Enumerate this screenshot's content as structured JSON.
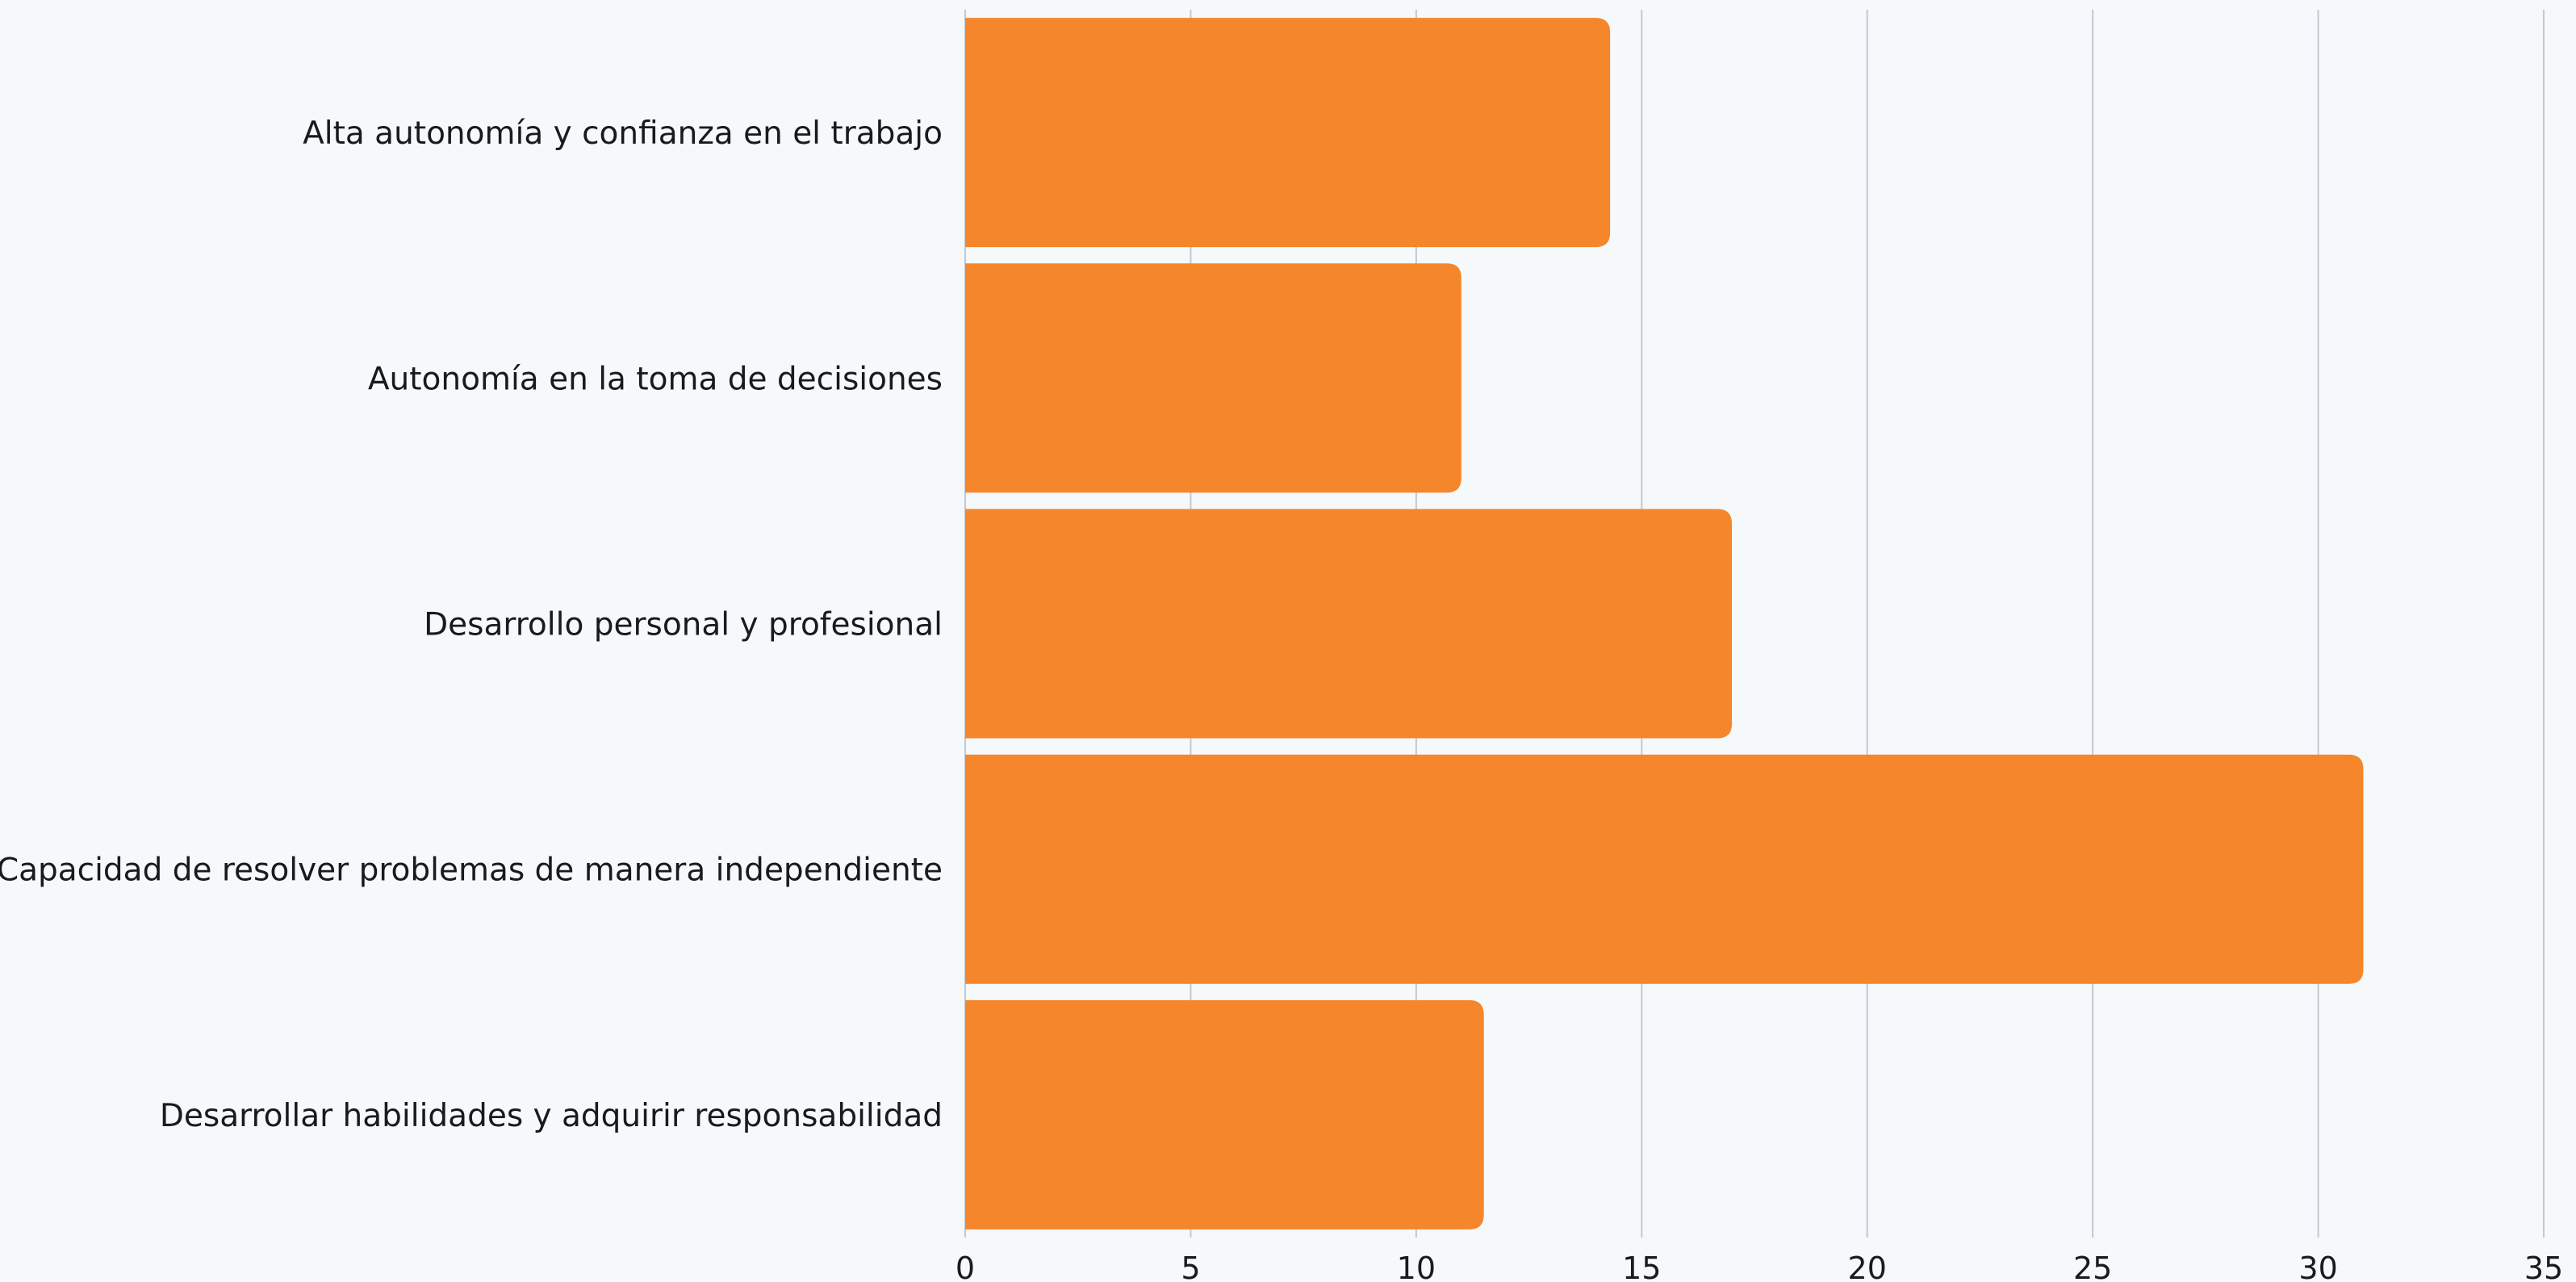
{
  "chart_data": {
    "type": "bar",
    "orientation": "horizontal",
    "categories": [
      "Alta autonomía y confianza en el trabajo",
      "Autonomía en la toma de decisiones",
      "Desarrollo personal y profesional",
      "Capacidad de resolver problemas de manera independiente",
      "Desarrollar habilidades y adquirir responsabilidad"
    ],
    "values": [
      14.3,
      11.0,
      17.0,
      31.0,
      11.5
    ],
    "xlim": [
      0,
      35
    ],
    "x_ticks": [
      0,
      5,
      10,
      15,
      20,
      25,
      30,
      35
    ],
    "grid": "vertical",
    "title": "",
    "xlabel": "",
    "ylabel": "",
    "colors": {
      "bar": "#f5862c",
      "grid": "#c3c8ce",
      "background": "#f5f9fc",
      "text": "#1a1a1a"
    }
  }
}
